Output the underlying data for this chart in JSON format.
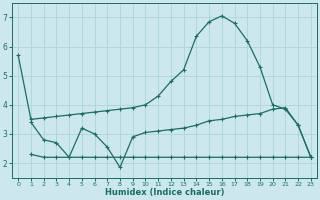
{
  "xlabel": "Humidex (Indice chaleur)",
  "bg_color": "#cce8ec",
  "grid_color": "#b0d8dc",
  "line_color": "#1a6e64",
  "series1_x": [
    0,
    1,
    2,
    3,
    4,
    5,
    6,
    7,
    8,
    9,
    10,
    11,
    12,
    13,
    14,
    15,
    16,
    17,
    18,
    19,
    20,
    21,
    22,
    23
  ],
  "series1_y": [
    5.7,
    3.5,
    3.55,
    3.6,
    3.65,
    3.7,
    3.75,
    3.8,
    3.85,
    3.9,
    4.0,
    4.3,
    4.8,
    5.2,
    6.35,
    6.85,
    7.05,
    6.8,
    6.2,
    5.3,
    4.0,
    3.85,
    3.3,
    2.2
  ],
  "series2_x": [
    1,
    2,
    3,
    4,
    5,
    6,
    7,
    8,
    9,
    10,
    11,
    12,
    13,
    14,
    15,
    16,
    17,
    18,
    19,
    20,
    21,
    22,
    23
  ],
  "series2_y": [
    3.4,
    2.8,
    2.7,
    2.2,
    3.2,
    3.0,
    2.55,
    1.85,
    2.9,
    3.05,
    3.1,
    3.15,
    3.2,
    3.3,
    3.45,
    3.5,
    3.6,
    3.65,
    3.7,
    3.85,
    3.9,
    3.3,
    2.2
  ],
  "series3_x": [
    1,
    2,
    3,
    4,
    5,
    6,
    7,
    8,
    9,
    10,
    11,
    12,
    13,
    14,
    15,
    16,
    17,
    18,
    19,
    20,
    21,
    22,
    23
  ],
  "series3_y": [
    2.3,
    2.2,
    2.2,
    2.2,
    2.2,
    2.2,
    2.2,
    2.2,
    2.2,
    2.2,
    2.2,
    2.2,
    2.2,
    2.2,
    2.2,
    2.2,
    2.2,
    2.2,
    2.2,
    2.2,
    2.2,
    2.2,
    2.2
  ],
  "xlim": [
    -0.5,
    23.5
  ],
  "ylim": [
    1.5,
    7.5
  ],
  "yticks": [
    2,
    3,
    4,
    5,
    6,
    7
  ],
  "xticks": [
    0,
    1,
    2,
    3,
    4,
    5,
    6,
    7,
    8,
    9,
    10,
    11,
    12,
    13,
    14,
    15,
    16,
    17,
    18,
    19,
    20,
    21,
    22,
    23
  ]
}
